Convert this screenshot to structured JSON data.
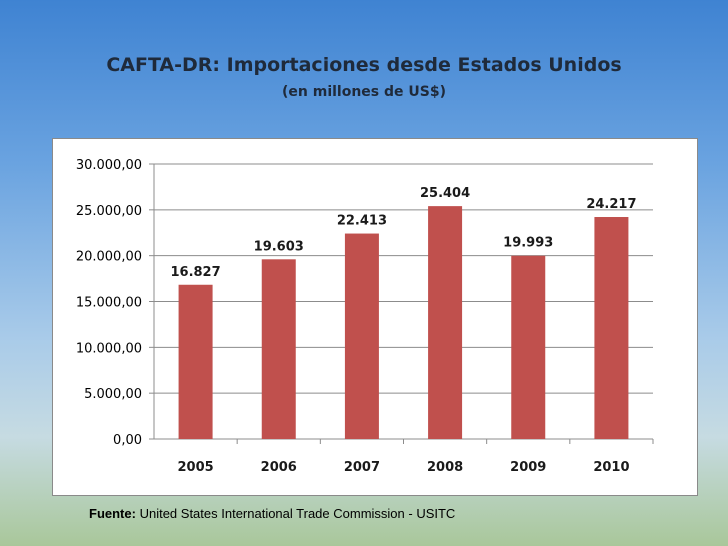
{
  "title": "CAFTA-DR: Importaciones desde Estados Unidos",
  "subtitle": "(en millones de US$)",
  "source": {
    "label": "Fuente:",
    "text": "United States International Trade Commission - USITC"
  },
  "colors": {
    "bar": "#c0504d",
    "gridline": "#8c8c8c"
  },
  "chart_data": {
    "type": "bar",
    "title": "CAFTA-DR: Importaciones desde Estados Unidos",
    "subtitle": "(en millones de US$)",
    "categories": [
      "2005",
      "2006",
      "2007",
      "2008",
      "2009",
      "2010"
    ],
    "values": [
      16827,
      19603,
      22413,
      25404,
      19993,
      24217
    ],
    "data_labels": [
      "16.827",
      "19.603",
      "22.413",
      "25.404",
      "19.993",
      "24.217"
    ],
    "yticks": [
      0,
      5000,
      10000,
      15000,
      20000,
      25000,
      30000
    ],
    "ytick_labels": [
      "0,00",
      "5.000,00",
      "10.000,00",
      "15.000,00",
      "20.000,00",
      "25.000,00",
      "30.000,00"
    ],
    "ylim": [
      0,
      30000
    ],
    "xlabel": "",
    "ylabel": "",
    "grid": true,
    "legend": "none"
  }
}
